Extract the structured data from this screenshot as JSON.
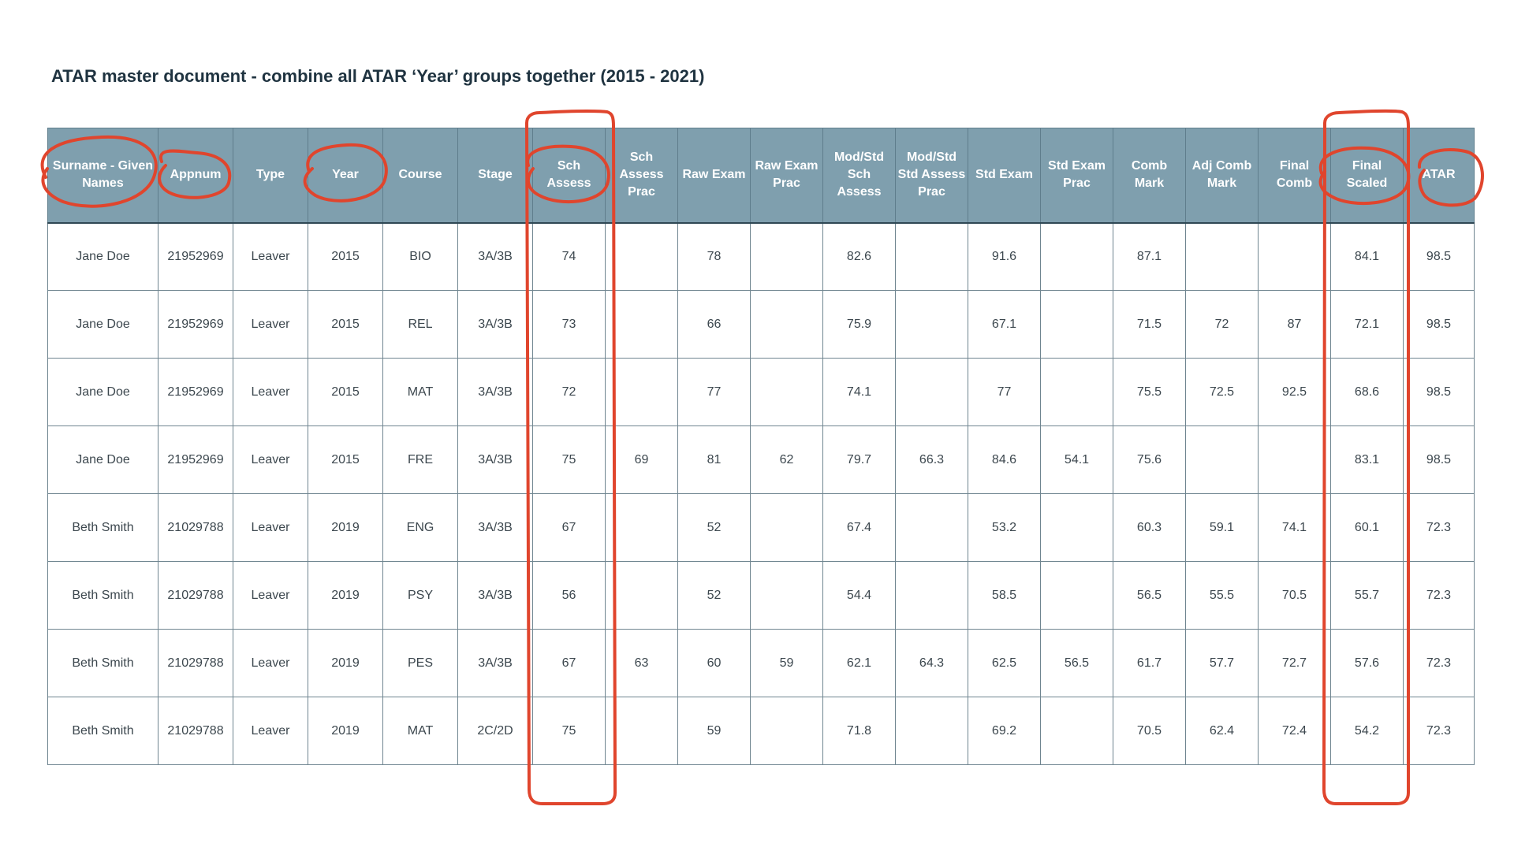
{
  "title": "ATAR master document - combine all ATAR ‘Year’ groups together (2015 - 2021)",
  "table": {
    "headers": [
      "Surname - Given\nNames",
      "Appnum",
      "Type",
      "Year",
      "Course",
      "Stage",
      "Sch\nAssess",
      "Sch\nAssess\nPrac",
      "Raw Exam",
      "Raw Exam\nPrac",
      "Mod/Std\nSch\nAssess",
      "Mod/Std\nStd Assess\nPrac",
      "Std Exam",
      "Std Exam\nPrac",
      "Comb\nMark",
      "Adj Comb\nMark",
      "Final\nComb",
      "Final\nScaled",
      "ATAR"
    ],
    "rows": [
      [
        "Jane Doe",
        "21952969",
        "Leaver",
        "2015",
        "BIO",
        "3A/3B",
        "74",
        "",
        "78",
        "",
        "82.6",
        "",
        "91.6",
        "",
        "87.1",
        "",
        "",
        "84.1",
        "98.5"
      ],
      [
        "Jane Doe",
        "21952969",
        "Leaver",
        "2015",
        "REL",
        "3A/3B",
        "73",
        "",
        "66",
        "",
        "75.9",
        "",
        "67.1",
        "",
        "71.5",
        "72",
        "87",
        "72.1",
        "98.5"
      ],
      [
        "Jane Doe",
        "21952969",
        "Leaver",
        "2015",
        "MAT",
        "3A/3B",
        "72",
        "",
        "77",
        "",
        "74.1",
        "",
        "77",
        "",
        "75.5",
        "72.5",
        "92.5",
        "68.6",
        "98.5"
      ],
      [
        "Jane Doe",
        "21952969",
        "Leaver",
        "2015",
        "FRE",
        "3A/3B",
        "75",
        "69",
        "81",
        "62",
        "79.7",
        "66.3",
        "84.6",
        "54.1",
        "75.6",
        "",
        "",
        "83.1",
        "98.5"
      ],
      [
        "Beth Smith",
        "21029788",
        "Leaver",
        "2019",
        "ENG",
        "3A/3B",
        "67",
        "",
        "52",
        "",
        "67.4",
        "",
        "53.2",
        "",
        "60.3",
        "59.1",
        "74.1",
        "60.1",
        "72.3"
      ],
      [
        "Beth Smith",
        "21029788",
        "Leaver",
        "2019",
        "PSY",
        "3A/3B",
        "56",
        "",
        "52",
        "",
        "54.4",
        "",
        "58.5",
        "",
        "56.5",
        "55.5",
        "70.5",
        "55.7",
        "72.3"
      ],
      [
        "Beth Smith",
        "21029788",
        "Leaver",
        "2019",
        "PES",
        "3A/3B",
        "67",
        "63",
        "60",
        "59",
        "62.1",
        "64.3",
        "62.5",
        "56.5",
        "61.7",
        "57.7",
        "72.7",
        "57.6",
        "72.3"
      ],
      [
        "Beth Smith",
        "21029788",
        "Leaver",
        "2019",
        "MAT",
        "2C/2D",
        "75",
        "",
        "59",
        "",
        "71.8",
        "",
        "69.2",
        "",
        "70.5",
        "62.4",
        "72.4",
        "54.2",
        "72.3"
      ]
    ]
  },
  "colors": {
    "header_bg": "#7f9fae",
    "header_text": "#ffffff",
    "annotation": "#e0452d",
    "title_text": "#1f3340"
  },
  "annotations": {
    "circled_columns": [
      "Surname - Given Names",
      "Appnum",
      "Year",
      "Sch Assess",
      "Final Scaled",
      "ATAR"
    ],
    "boxed_columns": [
      "Sch Assess",
      "Final Scaled"
    ]
  }
}
